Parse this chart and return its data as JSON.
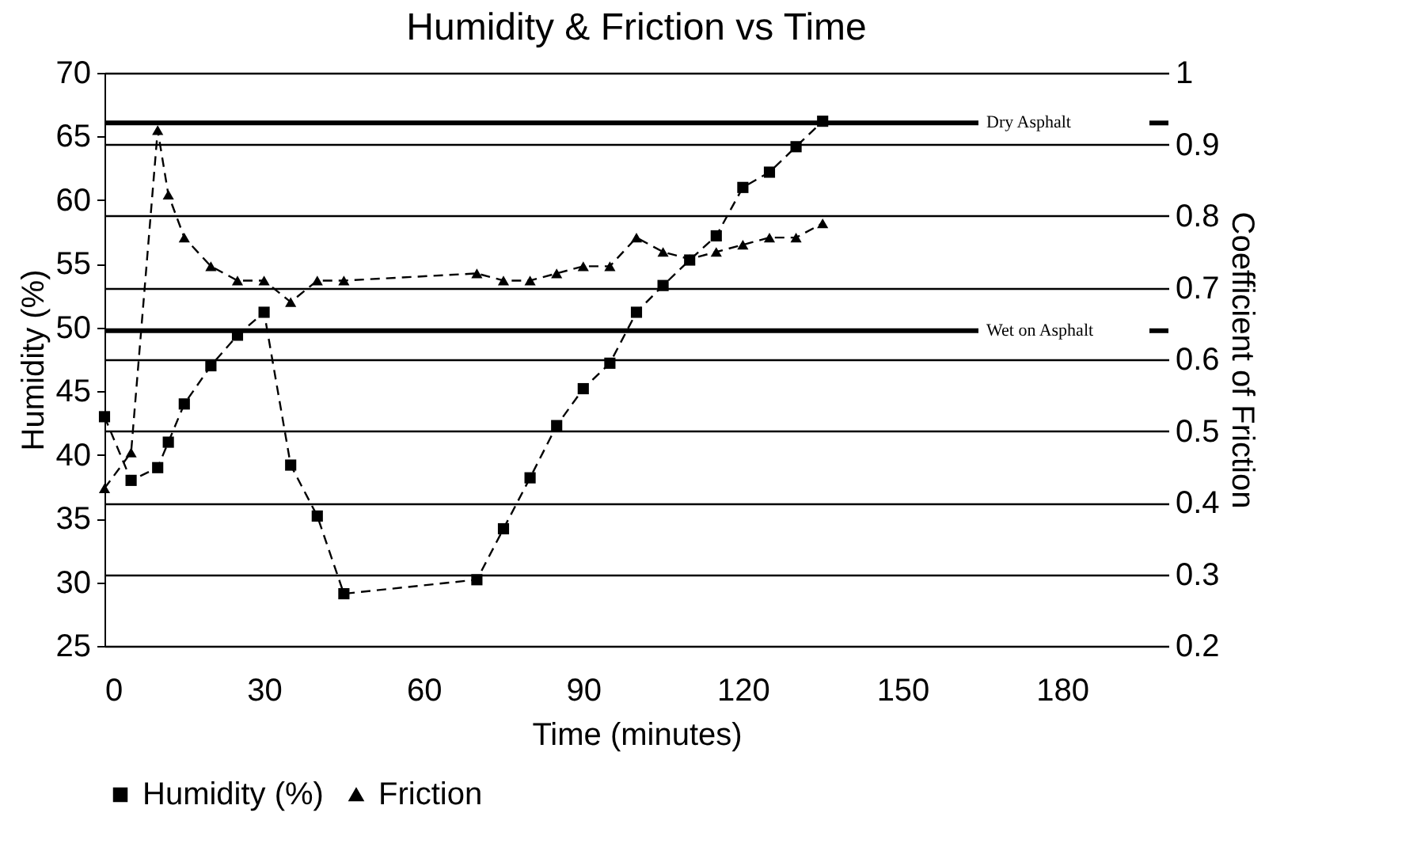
{
  "chart_data": {
    "type": "line",
    "title": "Humidity & Friction vs Time",
    "xlabel": "Time (minutes)",
    "ylabel": "Humidity (%)",
    "y2label": "Coefficient of Friction",
    "xlim": [
      0,
      200
    ],
    "xticks": [
      0,
      30,
      60,
      90,
      120,
      150,
      180
    ],
    "ylim": [
      25,
      70
    ],
    "yticks": [
      25,
      30,
      35,
      40,
      45,
      50,
      55,
      60,
      65,
      70
    ],
    "y2lim": [
      0.2,
      1
    ],
    "y2ticks": [
      0.2,
      0.3,
      0.4,
      0.5,
      0.6,
      0.7,
      0.8,
      0.9,
      1
    ],
    "grid": "y2",
    "legend": "bottom",
    "line_style": "dashed",
    "ref_lines": [
      {
        "axis": "y2",
        "value": 0.93,
        "label": "Dry Asphalt",
        "color": "#000000"
      },
      {
        "axis": "y2",
        "value": 0.64,
        "label": "Wet on Asphalt",
        "color": "#000000"
      }
    ],
    "series": [
      {
        "name": "Humidity (%)",
        "color": "#000000",
        "marker": "square",
        "x": [
          0,
          5,
          10,
          12,
          15,
          20,
          25,
          30,
          35,
          40,
          45,
          70,
          75,
          80,
          85,
          90,
          95,
          100,
          105,
          110,
          115,
          120,
          125,
          130,
          135
        ],
        "values": [
          43,
          38,
          39,
          41,
          44,
          47,
          49.4,
          51.2,
          39.2,
          35.2,
          29.1,
          30.2,
          34.2,
          38.2,
          42.3,
          45.2,
          47.2,
          51.2,
          53.3,
          55.3,
          57.2,
          61,
          62.2,
          64.2,
          66.2
        ]
      },
      {
        "name": "Friction",
        "color": "#000000",
        "marker": "triangle",
        "axis": "y2",
        "x": [
          0,
          5,
          10,
          12,
          15,
          20,
          25,
          30,
          35,
          40,
          45,
          70,
          75,
          80,
          85,
          90,
          95,
          100,
          105,
          110,
          115,
          120,
          125,
          130,
          135
        ],
        "values": [
          0.42,
          0.47,
          0.92,
          0.83,
          0.77,
          0.73,
          0.71,
          0.71,
          0.68,
          0.71,
          0.71,
          0.72,
          0.71,
          0.71,
          0.72,
          0.73,
          0.73,
          0.77,
          0.75,
          0.74,
          0.75,
          0.76,
          0.77,
          0.77,
          0.79
        ]
      }
    ]
  }
}
